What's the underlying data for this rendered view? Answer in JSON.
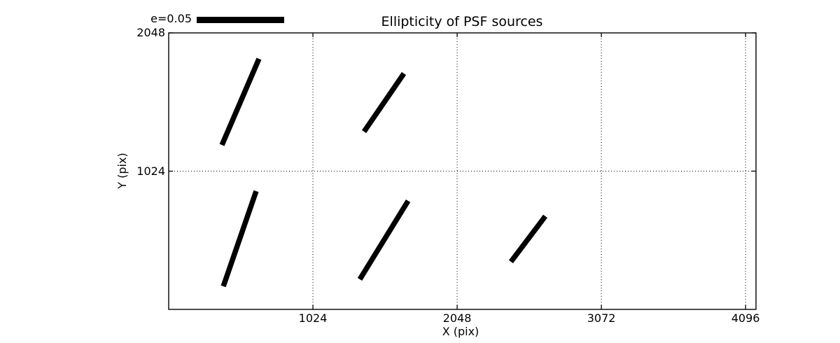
{
  "figure": {
    "background": "#ffffff",
    "foreground": "#000000"
  },
  "chart_data": {
    "type": "line",
    "subtype": "ellipticity-whisker-plot",
    "title": "Ellipticity of PSF sources",
    "xlabel": "X (pix)",
    "ylabel": "Y (pix)",
    "xlim": [
      0,
      4170
    ],
    "ylim": [
      0,
      2048
    ],
    "xticks": [
      1024,
      2048,
      3072,
      4096
    ],
    "yticks": [
      1024,
      2048
    ],
    "grid": {
      "visible": true,
      "style": "dotted",
      "color": "#000000"
    },
    "legend": {
      "label": "e=0.05",
      "position": "outside-top-left",
      "bar_color": "#000000",
      "bar_ellipticity": 0.05
    },
    "whisker_color": "#000000",
    "series": [
      {
        "name": "whisker-1",
        "x1": 378,
        "y1": 1218,
        "x2": 641,
        "y2": 1856,
        "e_est": 0.054
      },
      {
        "name": "whisker-2",
        "x1": 1387,
        "y1": 1317,
        "x2": 1670,
        "y2": 1747,
        "e_est": 0.041
      },
      {
        "name": "whisker-3",
        "x1": 388,
        "y1": 171,
        "x2": 621,
        "y2": 876,
        "e_est": 0.058
      },
      {
        "name": "whisker-4",
        "x1": 1357,
        "y1": 223,
        "x2": 1700,
        "y2": 804,
        "e_est": 0.053
      },
      {
        "name": "whisker-5",
        "x1": 2430,
        "y1": 353,
        "x2": 2674,
        "y2": 690,
        "e_est": 0.033
      }
    ]
  }
}
